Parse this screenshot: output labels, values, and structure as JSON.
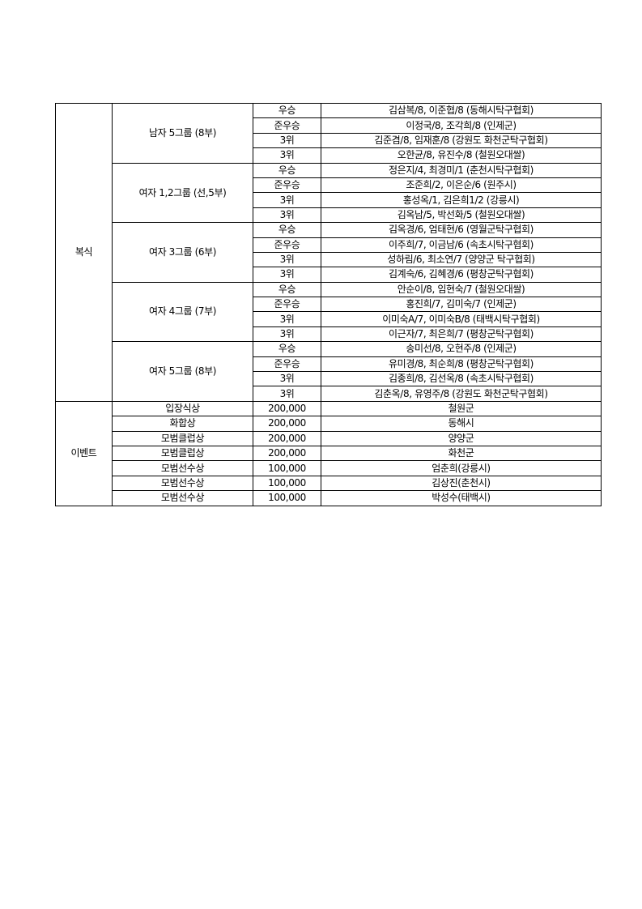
{
  "sections": [
    {
      "category": "복식",
      "groups": [
        {
          "name": "남자 5그룹 (8부)",
          "rows": [
            {
              "rank": "우승",
              "result": "김삼복/8, 이준협/8 (동해시탁구협회)"
            },
            {
              "rank": "준우승",
              "result": "이정국/8, 조각희/8 (인제군)"
            },
            {
              "rank": "3위",
              "result": "김준겸/8, 임재훈/8 (강원도 화천군탁구협회)"
            },
            {
              "rank": "3위",
              "result": "오한균/8, 유진수/8 (철원오대쌀)"
            }
          ]
        },
        {
          "name": "여자 1,2그룹 (선,5부)",
          "rows": [
            {
              "rank": "우승",
              "result": "정은지/4, 최경미/1 (춘천시탁구협회)"
            },
            {
              "rank": "준우승",
              "result": "조준희/2, 이은순/6 (원주시)"
            },
            {
              "rank": "3위",
              "result": "홍성옥/1, 김은희1/2 (강릉시)"
            },
            {
              "rank": "3위",
              "result": "김옥남/5, 박선화/5 (철원오대쌀)"
            }
          ]
        },
        {
          "name": "여자 3그룹 (6부)",
          "rows": [
            {
              "rank": "우승",
              "result": "김옥경/6, 엄태현/6 (영월군탁구협회)"
            },
            {
              "rank": "준우승",
              "result": "이주희/7, 이금남/6 (속초시탁구협회)"
            },
            {
              "rank": "3위",
              "result": "성하림/6, 최소연/7 (양양군 탁구협회)"
            },
            {
              "rank": "3위",
              "result": "김계숙/6, 김혜경/6 (평창군탁구협회)"
            }
          ]
        },
        {
          "name": "여자 4그룹 (7부)",
          "rows": [
            {
              "rank": "우승",
              "result": "안순이/8, 임현숙/7 (철원오대쌀)"
            },
            {
              "rank": "준우승",
              "result": "홍진희/7, 김미숙/7 (인제군)"
            },
            {
              "rank": "3위",
              "result": "이미숙A/7, 이미숙B/8 (태백시탁구협회)"
            },
            {
              "rank": "3위",
              "result": "이근자/7, 최은희/7 (평창군탁구협회)"
            }
          ]
        },
        {
          "name": "여자 5그룹 (8부)",
          "rows": [
            {
              "rank": "우승",
              "result": "송미선/8, 오현주/8 (인제군)"
            },
            {
              "rank": "준우승",
              "result": "유미경/8, 최순희/8 (평창군탁구협회)"
            },
            {
              "rank": "3위",
              "result": "김종희/8, 김선옥/8 (속초시탁구협회)"
            },
            {
              "rank": "3위",
              "result": "김춘옥/8, 유영주/8 (강원도 화천군탁구협회)"
            }
          ]
        }
      ]
    },
    {
      "category": "이벤트",
      "events": [
        {
          "award": "입장식상",
          "prize": "200,000",
          "winner": "철원군"
        },
        {
          "award": "화합상",
          "prize": "200,000",
          "winner": "동해시"
        },
        {
          "award": "모범클럽상",
          "prize": "200,000",
          "winner": "양양군"
        },
        {
          "award": "모범클럽상",
          "prize": "200,000",
          "winner": "화천군"
        },
        {
          "award": "모범선수상",
          "prize": "100,000",
          "winner": "엄춘희(강릉시)"
        },
        {
          "award": "모범선수상",
          "prize": "100,000",
          "winner": "김상진(춘천시)"
        },
        {
          "award": "모범선수상",
          "prize": "100,000",
          "winner": "박성수(태백시)"
        }
      ]
    }
  ]
}
